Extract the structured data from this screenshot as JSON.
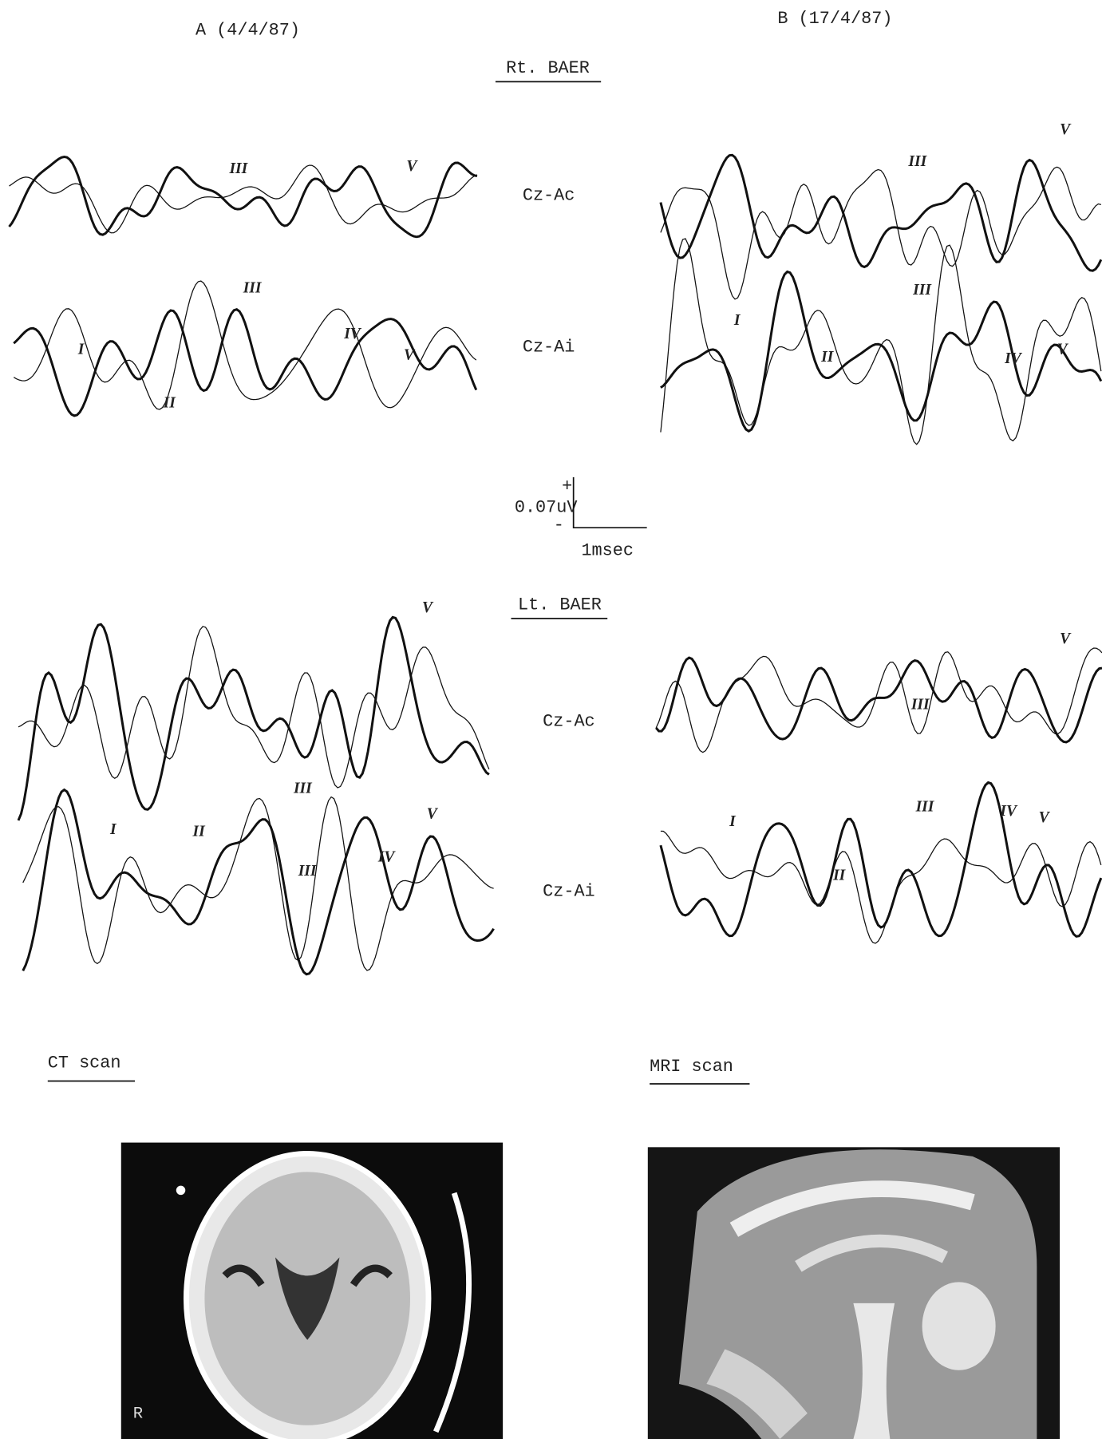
{
  "columns": [
    "A (4/4/87)",
    "B (17/4/87)"
  ],
  "sections": [
    {
      "title": "Rt. BAER",
      "rows": [
        {
          "derivation": "Cz-Ac",
          "panels": [
            {
              "peaks": [
                "III",
                "V"
              ]
            },
            {
              "peaks": [
                "III",
                "V"
              ]
            }
          ]
        },
        {
          "derivation": "Cz-Ai",
          "panels": [
            {
              "peaks": [
                "I",
                "II",
                "III",
                "IV",
                "V"
              ]
            },
            {
              "peaks": [
                "I",
                "II",
                "III",
                "IV",
                "V"
              ]
            }
          ]
        }
      ]
    },
    {
      "title": "Lt. BAER",
      "rows": [
        {
          "derivation": "Cz-Ac",
          "panels": [
            {
              "peaks": [
                "III",
                "V"
              ]
            },
            {
              "peaks": [
                "III",
                "V"
              ]
            }
          ]
        },
        {
          "derivation": "Cz-Ai",
          "panels": [
            {
              "peaks": [
                "I",
                "II",
                "III",
                "IV",
                "V"
              ]
            },
            {
              "peaks": [
                "I",
                "II",
                "III",
                "IV",
                "V"
              ]
            }
          ]
        }
      ]
    }
  ],
  "scale": {
    "plus": "+",
    "amplitude": "0.07uV",
    "minus": "-",
    "time": "1msec"
  },
  "scans": [
    {
      "title": "CT scan",
      "marker": "R"
    },
    {
      "title": "MRI scan"
    }
  ]
}
